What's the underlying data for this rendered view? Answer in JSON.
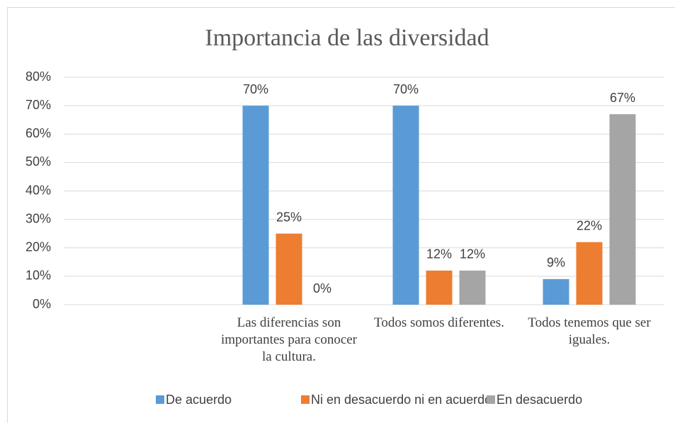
{
  "chart_data": {
    "type": "bar",
    "title": "Importancia de las diversidad",
    "categories": [
      null,
      "Las diferencias son importantes para conocer la cultura.",
      "Todos somos diferentes.",
      "Todos tenemos que ser iguales."
    ],
    "series": [
      {
        "name": "De acuerdo",
        "color": "#5b9bd5",
        "values": [
          null,
          70,
          70,
          9
        ],
        "value_labels": [
          null,
          "70%",
          "70%",
          "9%"
        ]
      },
      {
        "name": "Ni en desacuerdo ni en acuerdo",
        "color": "#ed7d31",
        "values": [
          null,
          25,
          12,
          22
        ],
        "value_labels": [
          null,
          "25%",
          "12%",
          "22%"
        ]
      },
      {
        "name": "En desacuerdo",
        "color": "#a5a5a5",
        "values": [
          null,
          0,
          12,
          67
        ],
        "value_labels": [
          null,
          "0%",
          "12%",
          "67%"
        ]
      }
    ],
    "ylim": [
      0,
      80
    ],
    "yticks": [
      {
        "value": 0,
        "label": "0%"
      },
      {
        "value": 10,
        "label": "10%"
      },
      {
        "value": 20,
        "label": "20%"
      },
      {
        "value": 30,
        "label": "30%"
      },
      {
        "value": 40,
        "label": "40%"
      },
      {
        "value": 50,
        "label": "50%"
      },
      {
        "value": 60,
        "label": "60%"
      },
      {
        "value": 70,
        "label": "70%"
      },
      {
        "value": 80,
        "label": "80%"
      }
    ],
    "grid": true,
    "legend": "bottom"
  }
}
